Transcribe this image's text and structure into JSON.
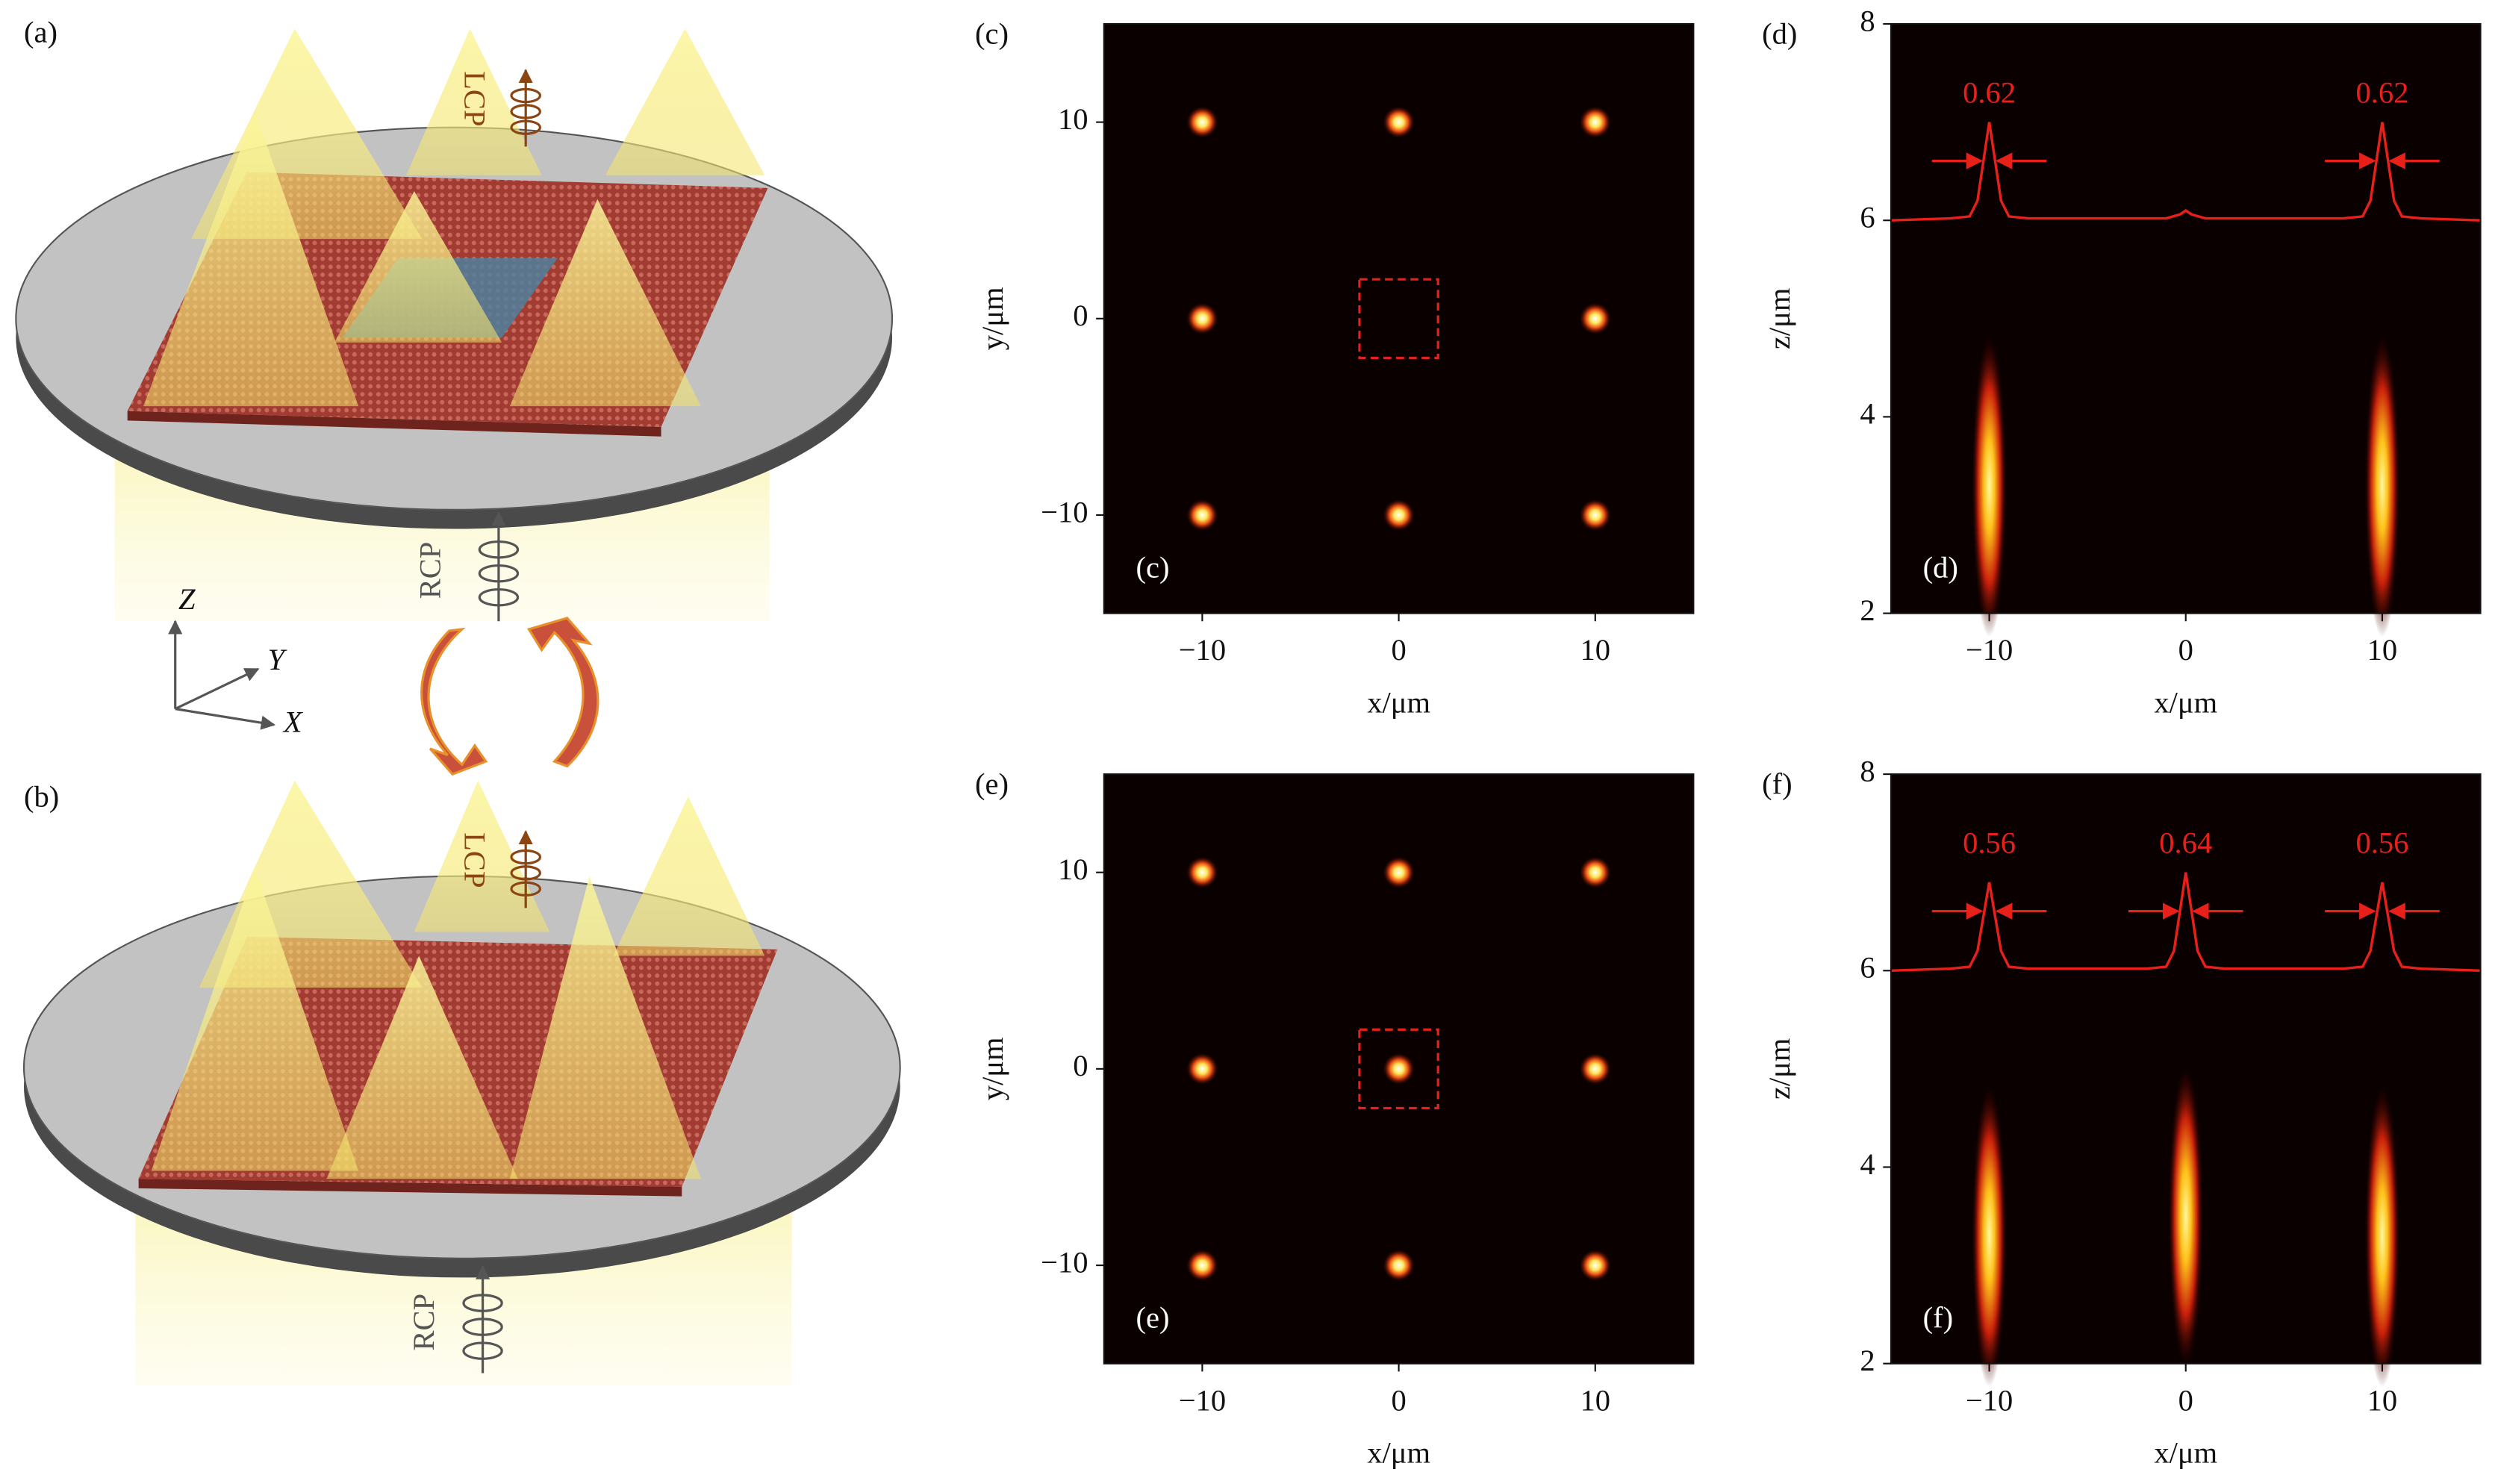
{
  "panels": {
    "a": {
      "label": "(a)",
      "lcp": "LCP",
      "rcp": "RCP"
    },
    "b": {
      "label": "(b)",
      "lcp": "LCP",
      "rcp": "RCP"
    },
    "axes": {
      "z": "Z",
      "y": "Y",
      "x": "X"
    }
  },
  "chart_data": [
    {
      "type": "spots",
      "label": "(c)",
      "inner_label": "(c)",
      "x_label": "x/μm",
      "y_label": "y/μm",
      "xlim": [
        -15,
        15
      ],
      "ylim": [
        -15,
        15
      ],
      "xticks": [
        {
          "value": -10,
          "label": "−10"
        },
        0,
        10
      ],
      "yticks": [
        {
          "value": -10,
          "label": "−10"
        },
        0,
        10
      ],
      "x": [
        -10,
        0,
        10,
        -10,
        10,
        -10,
        0,
        10
      ],
      "y": [
        10,
        10,
        10,
        0,
        0,
        -10,
        -10,
        -10
      ],
      "box_x": [
        -2,
        2
      ],
      "box_y": [
        -2,
        2
      ],
      "color": "#e8201a"
    },
    {
      "type": "beams",
      "label": "(d)",
      "inner_label": "(d)",
      "x_label": "x/μm",
      "y_label": "z/μm",
      "xlim": [
        -15,
        15
      ],
      "ylim": [
        2,
        8
      ],
      "xticks": [
        {
          "value": -10,
          "label": "−10"
        },
        0,
        10
      ],
      "yticks": [
        2,
        4,
        6,
        8
      ],
      "beam_x": [
        -10,
        10
      ],
      "beam_z": [
        3.3,
        3.3
      ],
      "profile": {
        "x": [
          -15,
          -12,
          -11,
          -10.6,
          -10.3,
          -10,
          -9.7,
          -9.4,
          -9,
          -8,
          -5,
          -1,
          -0.3,
          0,
          0.3,
          1,
          5,
          8,
          9,
          9.4,
          9.7,
          10,
          10.3,
          10.6,
          11,
          12,
          15
        ],
        "values": [
          6.0,
          6.02,
          6.04,
          6.2,
          6.6,
          7.0,
          6.6,
          6.2,
          6.04,
          6.02,
          6.02,
          6.02,
          6.06,
          6.1,
          6.06,
          6.02,
          6.02,
          6.02,
          6.04,
          6.2,
          6.6,
          7.0,
          6.6,
          6.2,
          6.04,
          6.02,
          6.0
        ]
      },
      "fwhm_x": [
        -10,
        10
      ],
      "fwhm": [
        0.62,
        0.62
      ],
      "color": "#e8201a"
    },
    {
      "type": "spots",
      "label": "(e)",
      "inner_label": "(e)",
      "x_label": "x/μm",
      "y_label": "y/μm",
      "xlim": [
        -15,
        15
      ],
      "ylim": [
        -15,
        15
      ],
      "xticks": [
        {
          "value": -10,
          "label": "−10"
        },
        0,
        10
      ],
      "yticks": [
        {
          "value": -10,
          "label": "−10"
        },
        0,
        10
      ],
      "x": [
        -10,
        0,
        10,
        -10,
        0,
        10,
        -10,
        0,
        10
      ],
      "y": [
        10,
        10,
        10,
        0,
        0,
        0,
        -10,
        -10,
        -10
      ],
      "box_x": [
        -2,
        2
      ],
      "box_y": [
        -2,
        2
      ],
      "color": "#e8201a"
    },
    {
      "type": "beams",
      "label": "(f)",
      "inner_label": "(f)",
      "x_label": "x/μm",
      "y_label": "z/μm",
      "xlim": [
        -15,
        15
      ],
      "ylim": [
        2,
        8
      ],
      "xticks": [
        {
          "value": -10,
          "label": "−10"
        },
        0,
        10
      ],
      "yticks": [
        2,
        4,
        6,
        8
      ],
      "beam_x": [
        -10,
        0,
        10
      ],
      "beam_z": [
        3.3,
        3.5,
        3.3
      ],
      "profile": {
        "x": [
          -15,
          -12,
          -11,
          -10.6,
          -10.3,
          -10,
          -9.7,
          -9.4,
          -9,
          -8,
          -2,
          -1,
          -0.6,
          -0.3,
          0,
          0.3,
          0.6,
          1,
          2,
          8,
          9,
          9.4,
          9.7,
          10,
          10.3,
          10.6,
          11,
          12,
          15
        ],
        "values": [
          6.0,
          6.02,
          6.04,
          6.2,
          6.55,
          6.9,
          6.55,
          6.2,
          6.04,
          6.02,
          6.02,
          6.04,
          6.2,
          6.6,
          7.0,
          6.6,
          6.2,
          6.04,
          6.02,
          6.02,
          6.04,
          6.2,
          6.55,
          6.9,
          6.55,
          6.2,
          6.04,
          6.02,
          6.0
        ]
      },
      "fwhm_x": [
        -10,
        0,
        10
      ],
      "fwhm": [
        0.56,
        0.64,
        0.56
      ],
      "color": "#e8201a"
    }
  ]
}
